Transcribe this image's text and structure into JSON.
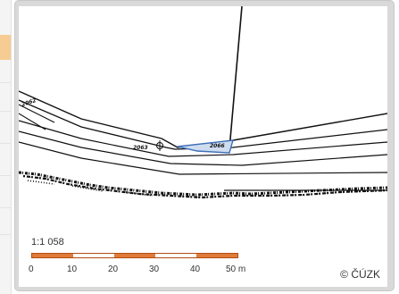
{
  "map": {
    "scale_ratio": "1:1 058",
    "scale_labels": [
      "0",
      "10",
      "20",
      "30",
      "40",
      "50 m"
    ],
    "scale_colors": [
      "#e07b39",
      "#ffffff",
      "#e07b39",
      "#ffffff",
      "#e07b39"
    ],
    "copyright": "© ČÚZK",
    "parcel_labels": [
      "2062",
      "2063",
      "2066"
    ],
    "line_color": "#111111",
    "highlight_color": "#3d6fb8"
  }
}
